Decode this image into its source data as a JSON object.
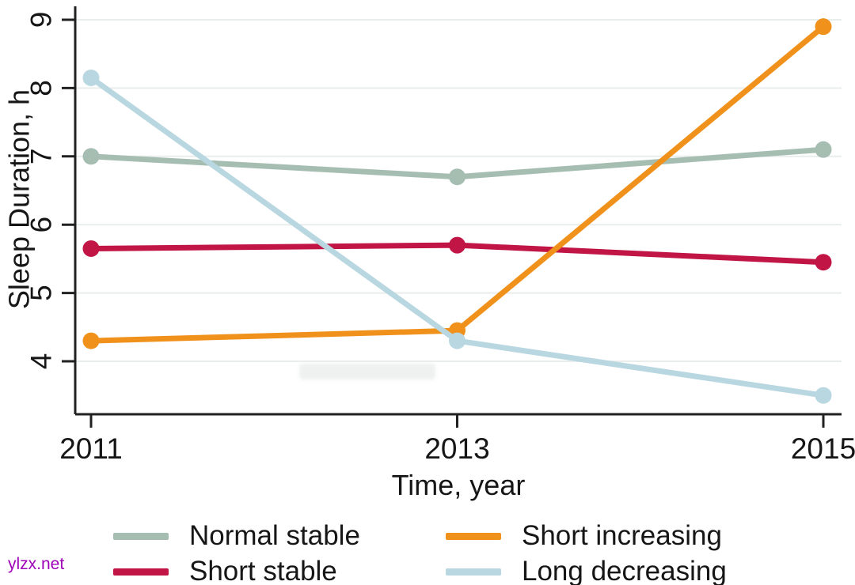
{
  "watermark": {
    "text": "ylzx.net",
    "color": "#9e00b8"
  },
  "chart_data": {
    "type": "line",
    "title": "",
    "xlabel": "Time, year",
    "ylabel": "Sleep Duration, h",
    "categories": [
      2011,
      2013,
      2015
    ],
    "x_tick_labels": [
      "2011",
      "2013",
      "2015"
    ],
    "y_ticks": [
      4,
      5,
      6,
      7,
      8,
      9
    ],
    "ylim": [
      3.25,
      9.2
    ],
    "grid": "horizontal-light-gray",
    "legend_position": "bottom-two-columns",
    "marker": "filled-circle",
    "series": [
      {
        "name": "Normal stable",
        "color": "#a6beb2",
        "values": [
          7.0,
          6.7,
          7.1
        ]
      },
      {
        "name": "Short stable",
        "color": "#c11546",
        "values": [
          5.65,
          5.7,
          5.45
        ]
      },
      {
        "name": "Short increasing",
        "color": "#f0911c",
        "values": [
          4.3,
          4.45,
          8.9
        ]
      },
      {
        "name": "Long decreasing",
        "color": "#b9d7e1",
        "values": [
          8.15,
          4.3,
          3.5
        ]
      }
    ]
  }
}
